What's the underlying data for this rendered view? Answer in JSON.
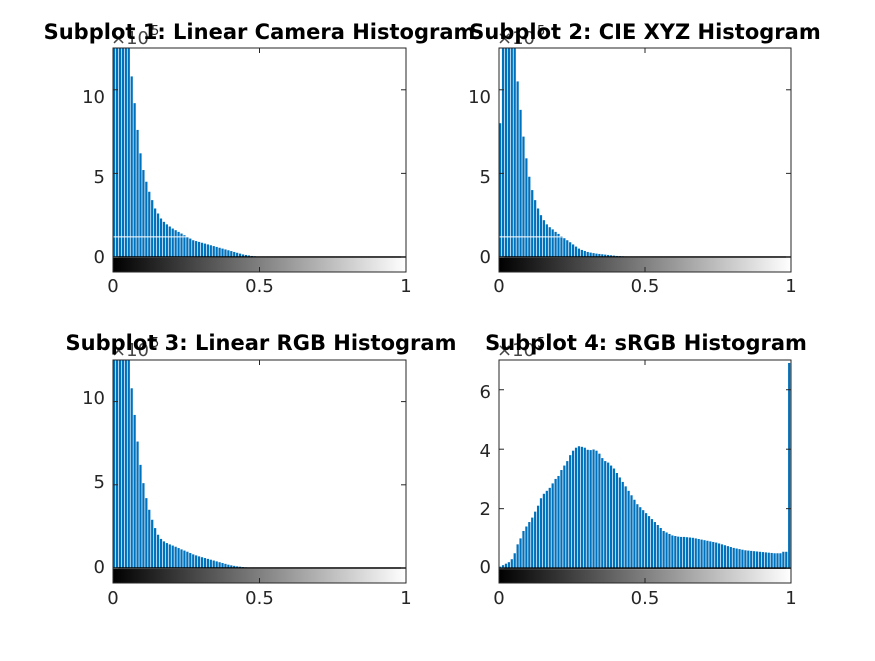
{
  "colors": {
    "bar": "#0072BD",
    "axis": "#262626",
    "background": "#ffffff",
    "title": "#000000"
  },
  "chart_data": [
    {
      "type": "bar",
      "title": "Subplot 1: Linear Camera Histogram",
      "xlabel": "",
      "ylabel": "",
      "xlim": [
        0,
        1
      ],
      "ylim": [
        -0.9,
        12.5
      ],
      "y_exponent": "5",
      "x_ticks": [
        0,
        0.5,
        1
      ],
      "x_tick_labels": [
        "0",
        "0.5",
        "1"
      ],
      "y_ticks": [
        0,
        5,
        10
      ],
      "y_tick_labels": [
        "0",
        "5",
        "10"
      ],
      "colorbar_x_range": [
        0,
        1
      ],
      "grid": false,
      "x": [
        0.005,
        0.015,
        0.025,
        0.035,
        0.045,
        0.055,
        0.065,
        0.075,
        0.085,
        0.095,
        0.105,
        0.115,
        0.125,
        0.135,
        0.145,
        0.155,
        0.165,
        0.175,
        0.185,
        0.195,
        0.205,
        0.215,
        0.225,
        0.235,
        0.245,
        0.255,
        0.265,
        0.275,
        0.285,
        0.295,
        0.305,
        0.315,
        0.325,
        0.335,
        0.345,
        0.355,
        0.365,
        0.375,
        0.385,
        0.395,
        0.405,
        0.415,
        0.425,
        0.435,
        0.445,
        0.455,
        0.465,
        0.475,
        0.485,
        0.495,
        0.505,
        0.515,
        0.525,
        0.535,
        0.545,
        0.555,
        0.565,
        0.575,
        0.585,
        0.595,
        0.605,
        0.615,
        0.625,
        0.635,
        0.645,
        0.655,
        0.665,
        0.675,
        0.685,
        0.695,
        0.705,
        0.715,
        0.725,
        0.735,
        0.745,
        0.755,
        0.765,
        0.775,
        0.785,
        0.795,
        0.805,
        0.815,
        0.825,
        0.835,
        0.845,
        0.855,
        0.865,
        0.875,
        0.885,
        0.895,
        0.905,
        0.915,
        0.925,
        0.935,
        0.945,
        0.955,
        0.965,
        0.975,
        0.985,
        0.995
      ],
      "values": [
        12.5,
        12.5,
        12.5,
        12.5,
        12.5,
        12.5,
        10.8,
        9.2,
        7.6,
        6.2,
        5.2,
        4.5,
        3.9,
        3.4,
        2.9,
        2.6,
        2.3,
        2.1,
        1.95,
        1.82,
        1.7,
        1.6,
        1.5,
        1.4,
        1.3,
        1.2,
        1.1,
        1.0,
        0.95,
        0.9,
        0.85,
        0.8,
        0.75,
        0.7,
        0.65,
        0.6,
        0.55,
        0.5,
        0.45,
        0.4,
        0.35,
        0.3,
        0.25,
        0.2,
        0.15,
        0.12,
        0.09,
        0.06,
        0.04,
        0.02,
        0.01,
        0.005,
        0,
        0,
        0,
        0,
        0,
        0,
        0,
        0,
        0,
        0,
        0,
        0,
        0,
        0,
        0,
        0,
        0,
        0,
        0,
        0,
        0,
        0,
        0,
        0,
        0,
        0,
        0,
        0,
        0,
        0,
        0,
        0,
        0,
        0,
        0,
        0,
        0,
        0,
        0,
        0,
        0,
        0,
        0,
        0,
        0,
        0,
        0,
        0
      ],
      "threshold_line_y": 1.2
    },
    {
      "type": "bar",
      "title": "Subplot 2: CIE XYZ Histogram",
      "xlabel": "",
      "ylabel": "",
      "xlim": [
        0,
        1
      ],
      "ylim": [
        -0.9,
        12.5
      ],
      "y_exponent": "5",
      "x_ticks": [
        0,
        0.5,
        1
      ],
      "x_tick_labels": [
        "0",
        "0.5",
        "1"
      ],
      "y_ticks": [
        0,
        5,
        10
      ],
      "y_tick_labels": [
        "0",
        "5",
        "10"
      ],
      "colorbar_x_range": [
        0,
        1
      ],
      "grid": false,
      "x": [
        0.005,
        0.015,
        0.025,
        0.035,
        0.045,
        0.055,
        0.065,
        0.075,
        0.085,
        0.095,
        0.105,
        0.115,
        0.125,
        0.135,
        0.145,
        0.155,
        0.165,
        0.175,
        0.185,
        0.195,
        0.205,
        0.215,
        0.225,
        0.235,
        0.245,
        0.255,
        0.265,
        0.275,
        0.285,
        0.295,
        0.305,
        0.315,
        0.325,
        0.335,
        0.345,
        0.355,
        0.365,
        0.375,
        0.385,
        0.395,
        0.405,
        0.415,
        0.425,
        0.435,
        0.445,
        0.455,
        0.465,
        0.475,
        0.485,
        0.495,
        0.505,
        0.515,
        0.525,
        0.535,
        0.545,
        0.555,
        0.565,
        0.575,
        0.585,
        0.595,
        0.605,
        0.615,
        0.625,
        0.635,
        0.645,
        0.655,
        0.665,
        0.675,
        0.685,
        0.695,
        0.705,
        0.715,
        0.725,
        0.735,
        0.745,
        0.755,
        0.765,
        0.775,
        0.785,
        0.795,
        0.805,
        0.815,
        0.825,
        0.835,
        0.845,
        0.855,
        0.865,
        0.875,
        0.885,
        0.895,
        0.905,
        0.915,
        0.925,
        0.935,
        0.945,
        0.955,
        0.965,
        0.975,
        0.985,
        0.995
      ],
      "values": [
        8.0,
        12.5,
        12.5,
        12.5,
        12.5,
        12.5,
        10.5,
        8.8,
        7.2,
        5.9,
        4.8,
        4.0,
        3.4,
        2.9,
        2.5,
        2.2,
        1.95,
        1.78,
        1.65,
        1.5,
        1.38,
        1.25,
        1.12,
        1.0,
        0.88,
        0.75,
        0.62,
        0.5,
        0.42,
        0.36,
        0.3,
        0.26,
        0.23,
        0.2,
        0.18,
        0.16,
        0.14,
        0.12,
        0.1,
        0.08,
        0.06,
        0.05,
        0.04,
        0.03,
        0.02,
        0.01,
        0.005,
        0,
        0,
        0,
        0,
        0,
        0,
        0,
        0,
        0,
        0,
        0,
        0,
        0,
        0,
        0,
        0,
        0,
        0,
        0,
        0,
        0,
        0,
        0,
        0,
        0,
        0,
        0,
        0,
        0,
        0,
        0,
        0,
        0,
        0,
        0,
        0,
        0,
        0,
        0,
        0,
        0,
        0,
        0,
        0,
        0,
        0,
        0,
        0,
        0,
        0,
        0,
        0,
        0
      ],
      "threshold_line_y": 1.2
    },
    {
      "type": "bar",
      "title": "Subplot 3: Linear RGB Histogram",
      "xlabel": "",
      "ylabel": "",
      "xlim": [
        0,
        1
      ],
      "ylim": [
        -0.9,
        12.5
      ],
      "y_exponent": "5",
      "x_ticks": [
        0,
        0.5,
        1
      ],
      "x_tick_labels": [
        "0",
        "0.5",
        "1"
      ],
      "y_ticks": [
        0,
        5,
        10
      ],
      "y_tick_labels": [
        "0",
        "5",
        "10"
      ],
      "colorbar_x_range": [
        0,
        1
      ],
      "grid": false,
      "x": [
        0.005,
        0.015,
        0.025,
        0.035,
        0.045,
        0.055,
        0.065,
        0.075,
        0.085,
        0.095,
        0.105,
        0.115,
        0.125,
        0.135,
        0.145,
        0.155,
        0.165,
        0.175,
        0.185,
        0.195,
        0.205,
        0.215,
        0.225,
        0.235,
        0.245,
        0.255,
        0.265,
        0.275,
        0.285,
        0.295,
        0.305,
        0.315,
        0.325,
        0.335,
        0.345,
        0.355,
        0.365,
        0.375,
        0.385,
        0.395,
        0.405,
        0.415,
        0.425,
        0.435,
        0.445,
        0.455,
        0.465,
        0.475,
        0.485,
        0.495,
        0.505,
        0.515,
        0.525,
        0.535,
        0.545,
        0.555,
        0.565,
        0.575,
        0.585,
        0.595,
        0.605,
        0.615,
        0.625,
        0.635,
        0.645,
        0.655,
        0.665,
        0.675,
        0.685,
        0.695,
        0.705,
        0.715,
        0.725,
        0.735,
        0.745,
        0.755,
        0.765,
        0.775,
        0.785,
        0.795,
        0.805,
        0.815,
        0.825,
        0.835,
        0.845,
        0.855,
        0.865,
        0.875,
        0.885,
        0.895,
        0.905,
        0.915,
        0.925,
        0.935,
        0.945,
        0.955,
        0.965,
        0.975,
        0.985,
        0.995
      ],
      "values": [
        12.5,
        12.5,
        12.5,
        12.5,
        12.5,
        12.5,
        10.8,
        9.2,
        7.6,
        6.2,
        5.1,
        4.2,
        3.5,
        2.9,
        2.4,
        2.0,
        1.75,
        1.6,
        1.5,
        1.42,
        1.35,
        1.28,
        1.2,
        1.12,
        1.05,
        0.98,
        0.9,
        0.82,
        0.76,
        0.7,
        0.65,
        0.6,
        0.55,
        0.5,
        0.45,
        0.4,
        0.35,
        0.3,
        0.25,
        0.2,
        0.16,
        0.13,
        0.1,
        0.08,
        0.06,
        0.04,
        0.03,
        0.02,
        0.01,
        0.005,
        0,
        0,
        0,
        0,
        0,
        0,
        0,
        0,
        0,
        0,
        0,
        0,
        0,
        0,
        0,
        0,
        0,
        0,
        0,
        0,
        0,
        0,
        0,
        0,
        0,
        0,
        0,
        0,
        0,
        0,
        0,
        0,
        0,
        0,
        0,
        0,
        0,
        0,
        0,
        0,
        0,
        0,
        0,
        0,
        0,
        0,
        0,
        0,
        0,
        0
      ]
    },
    {
      "type": "bar",
      "title": "Subplot 4: sRGB Histogram",
      "xlabel": "",
      "ylabel": "",
      "xlim": [
        0,
        1
      ],
      "ylim": [
        -0.5,
        7
      ],
      "y_exponent": "5",
      "x_ticks": [
        0,
        0.5,
        1
      ],
      "x_tick_labels": [
        "0",
        "0.5",
        "1"
      ],
      "y_ticks": [
        0,
        2,
        4,
        6
      ],
      "y_tick_labels": [
        "0",
        "2",
        "4",
        "6"
      ],
      "colorbar_x_range": [
        0,
        1
      ],
      "grid": false,
      "x": [
        0.005,
        0.015,
        0.025,
        0.035,
        0.045,
        0.055,
        0.065,
        0.075,
        0.085,
        0.095,
        0.105,
        0.115,
        0.125,
        0.135,
        0.145,
        0.155,
        0.165,
        0.175,
        0.185,
        0.195,
        0.205,
        0.215,
        0.225,
        0.235,
        0.245,
        0.255,
        0.265,
        0.275,
        0.285,
        0.295,
        0.305,
        0.315,
        0.325,
        0.335,
        0.345,
        0.355,
        0.365,
        0.375,
        0.385,
        0.395,
        0.405,
        0.415,
        0.425,
        0.435,
        0.445,
        0.455,
        0.465,
        0.475,
        0.485,
        0.495,
        0.505,
        0.515,
        0.525,
        0.535,
        0.545,
        0.555,
        0.565,
        0.575,
        0.585,
        0.595,
        0.605,
        0.615,
        0.625,
        0.635,
        0.645,
        0.655,
        0.665,
        0.675,
        0.685,
        0.695,
        0.705,
        0.715,
        0.725,
        0.735,
        0.745,
        0.755,
        0.765,
        0.775,
        0.785,
        0.795,
        0.805,
        0.815,
        0.825,
        0.835,
        0.845,
        0.855,
        0.865,
        0.875,
        0.885,
        0.895,
        0.905,
        0.915,
        0.925,
        0.935,
        0.945,
        0.955,
        0.965,
        0.975,
        0.985,
        0.995
      ],
      "values": [
        0.05,
        0.1,
        0.15,
        0.2,
        0.3,
        0.5,
        0.8,
        1.0,
        1.25,
        1.4,
        1.55,
        1.7,
        1.9,
        2.1,
        2.35,
        2.5,
        2.6,
        2.7,
        2.85,
        3.0,
        3.1,
        3.3,
        3.45,
        3.6,
        3.8,
        3.95,
        4.05,
        4.1,
        4.08,
        4.05,
        3.98,
        3.97,
        3.99,
        3.95,
        3.85,
        3.7,
        3.6,
        3.55,
        3.45,
        3.35,
        3.2,
        3.05,
        2.9,
        2.75,
        2.6,
        2.45,
        2.3,
        2.15,
        2.05,
        1.95,
        1.85,
        1.75,
        1.65,
        1.55,
        1.45,
        1.35,
        1.25,
        1.2,
        1.15,
        1.1,
        1.08,
        1.06,
        1.05,
        1.05,
        1.04,
        1.03,
        1.02,
        1.0,
        0.98,
        0.96,
        0.94,
        0.92,
        0.9,
        0.88,
        0.86,
        0.83,
        0.8,
        0.77,
        0.74,
        0.71,
        0.68,
        0.66,
        0.64,
        0.62,
        0.6,
        0.59,
        0.58,
        0.57,
        0.56,
        0.55,
        0.54,
        0.53,
        0.52,
        0.51,
        0.5,
        0.5,
        0.5,
        0.55,
        0.55,
        6.9
      ]
    }
  ]
}
